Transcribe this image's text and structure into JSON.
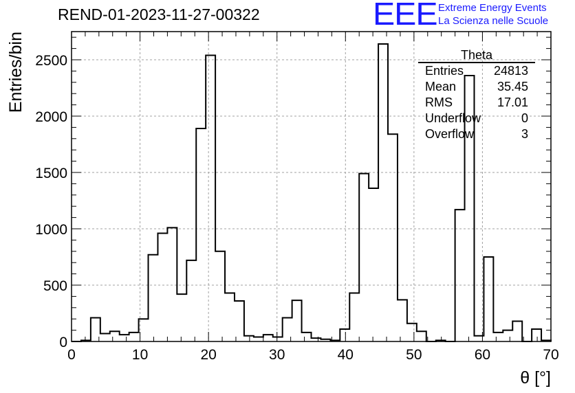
{
  "header": {
    "title": "REND-01-2023-11-27-00322",
    "logo_mark": "EEE",
    "logo_line1": "Extreme Energy Events",
    "logo_line2": "La Scienza nelle Scuole"
  },
  "stats": {
    "title": "Theta",
    "rows": [
      {
        "label": "Entries",
        "value": "24813"
      },
      {
        "label": "Mean",
        "value": "35.45"
      },
      {
        "label": "RMS",
        "value": "17.01"
      },
      {
        "label": "Underflow",
        "value": "0"
      },
      {
        "label": "Overflow",
        "value": "3"
      }
    ]
  },
  "colors": {
    "line": "#000000",
    "grid": "#a0a0a0",
    "logo": "#1a1aff"
  },
  "chart_data": {
    "type": "bar",
    "style": "step-histogram",
    "xlabel": "θ [°]",
    "ylabel": "Entries/bin",
    "xlim": [
      0,
      70
    ],
    "ylim": [
      0,
      2750
    ],
    "grid": true,
    "bin_width": 1.4,
    "x_ticks": [
      0,
      10,
      20,
      30,
      40,
      50,
      60,
      70
    ],
    "y_ticks": [
      0,
      500,
      1000,
      1500,
      2000,
      2500
    ],
    "bin_edges_start": 0,
    "values": [
      0,
      10,
      210,
      70,
      90,
      60,
      80,
      200,
      770,
      960,
      1010,
      420,
      720,
      1890,
      2540,
      800,
      430,
      360,
      50,
      40,
      60,
      40,
      210,
      365,
      80,
      30,
      20,
      10,
      110,
      430,
      1490,
      1360,
      2640,
      1840,
      370,
      160,
      90,
      0,
      10,
      0,
      1170,
      2360,
      50,
      750,
      80,
      100,
      180,
      0,
      110,
      10
    ]
  }
}
